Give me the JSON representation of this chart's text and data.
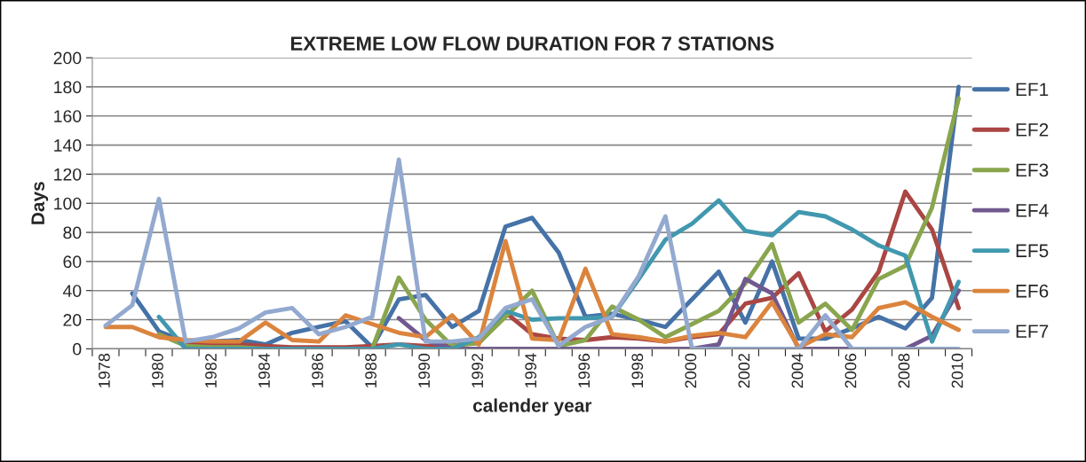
{
  "chart_data": {
    "type": "line",
    "title": "EXTREME LOW FLOW DURATION FOR 7 STATIONS",
    "xlabel": "calender year",
    "ylabel": "Days",
    "categories": [
      "1978",
      null,
      "1980",
      null,
      "1982",
      null,
      "1984",
      null,
      "1986",
      null,
      "1988",
      null,
      "1990",
      null,
      "1992",
      null,
      "1994",
      null,
      "1996",
      null,
      "1998",
      null,
      "2000",
      null,
      "2002",
      null,
      "2004",
      null,
      "2006",
      null,
      "2008",
      null,
      "2010"
    ],
    "series": [
      {
        "name": "EF1",
        "color": "#4572a7",
        "values": [
          null,
          38,
          12,
          5,
          5,
          6,
          3,
          11,
          15,
          19,
          1,
          34,
          37,
          15,
          26,
          84,
          90,
          66,
          22,
          24,
          20,
          15,
          34,
          53,
          18,
          60,
          7,
          7,
          14,
          22,
          14,
          35,
          180
        ]
      },
      {
        "name": "EF2",
        "color": "#aa4643",
        "values": [
          null,
          null,
          10,
          3,
          3,
          3,
          2,
          1,
          1,
          1,
          2,
          3,
          2,
          3,
          4,
          25,
          10,
          7,
          6,
          8,
          7,
          5,
          8,
          10,
          31,
          35,
          52,
          12,
          27,
          53,
          108,
          82,
          28
        ]
      },
      {
        "name": "EF3",
        "color": "#89a54e",
        "values": [
          null,
          null,
          10,
          2,
          1,
          1,
          0,
          0,
          0,
          0,
          0,
          49,
          20,
          2,
          4,
          22,
          40,
          2,
          6,
          29,
          20,
          8,
          17,
          26,
          45,
          72,
          18,
          31,
          13,
          48,
          57,
          97,
          172
        ]
      },
      {
        "name": "EF4",
        "color": "#71588f",
        "values": [
          null,
          null,
          null,
          null,
          null,
          null,
          null,
          null,
          null,
          null,
          null,
          21,
          6,
          0,
          0,
          0,
          0,
          0,
          0,
          0,
          0,
          0,
          0,
          3,
          48,
          38,
          0,
          0,
          0,
          0,
          0,
          9,
          40
        ]
      },
      {
        "name": "EF5",
        "color": "#4198af",
        "values": [
          null,
          null,
          22,
          0,
          0,
          0,
          0,
          0,
          0,
          0,
          0,
          3,
          0,
          0,
          8,
          26,
          20,
          21,
          21,
          22,
          48,
          75,
          86,
          102,
          81,
          78,
          94,
          91,
          82,
          71,
          64,
          5,
          46
        ]
      },
      {
        "name": "EF6",
        "color": "#db843d",
        "values": [
          15,
          15,
          8,
          6,
          5,
          5,
          18,
          6,
          5,
          23,
          17,
          11,
          8,
          23,
          3,
          74,
          7,
          6,
          55,
          10,
          8,
          5,
          9,
          11,
          8,
          32,
          1,
          10,
          8,
          28,
          32,
          22,
          13
        ]
      },
      {
        "name": "EF7",
        "color": "#93a9cf",
        "values": [
          16,
          30,
          103,
          5,
          8,
          14,
          25,
          28,
          10,
          15,
          22,
          130,
          5,
          5,
          7,
          28,
          34,
          2,
          15,
          22,
          50,
          91,
          0,
          0,
          0,
          0,
          0,
          23,
          0,
          0,
          0,
          0,
          0
        ]
      }
    ],
    "ylim": [
      0,
      200
    ],
    "yticks": [
      0,
      20,
      40,
      60,
      80,
      100,
      120,
      140,
      160,
      180,
      200
    ],
    "grid": "y",
    "legend": "right",
    "marker": "none",
    "line_style": "solid"
  }
}
